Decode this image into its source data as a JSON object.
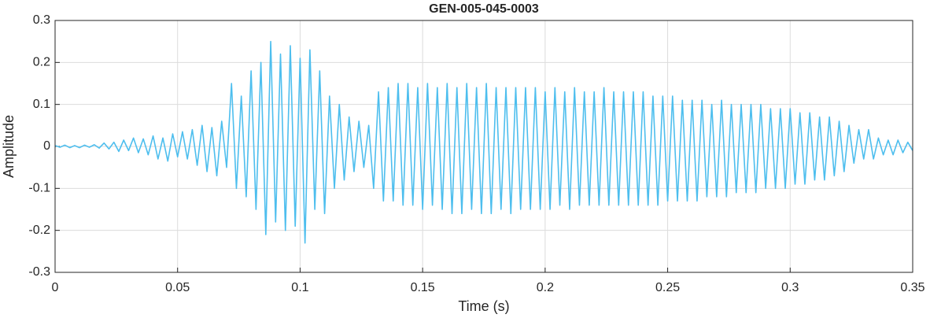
{
  "chart_data": {
    "type": "line",
    "title": "GEN-005-045-0003",
    "x_label": "Time (s)",
    "y_label": "Amplitude",
    "x": [
      0,
      0.002,
      0.004,
      0.006,
      0.008,
      0.01,
      0.012,
      0.014,
      0.016,
      0.018,
      0.02,
      0.022,
      0.024,
      0.026,
      0.028,
      0.03,
      0.032,
      0.034,
      0.036,
      0.038,
      0.04,
      0.042,
      0.044,
      0.046,
      0.048,
      0.05,
      0.052,
      0.054,
      0.056,
      0.058,
      0.06,
      0.062,
      0.064,
      0.066,
      0.068,
      0.07,
      0.072,
      0.074,
      0.076,
      0.078,
      0.08,
      0.082,
      0.084,
      0.086,
      0.088,
      0.09,
      0.092,
      0.094,
      0.096,
      0.098,
      0.1,
      0.102,
      0.104,
      0.106,
      0.108,
      0.11,
      0.112,
      0.114,
      0.116,
      0.118,
      0.12,
      0.122,
      0.124,
      0.126,
      0.128,
      0.13,
      0.132,
      0.134,
      0.136,
      0.138,
      0.14,
      0.142,
      0.144,
      0.146,
      0.148,
      0.15,
      0.152,
      0.154,
      0.156,
      0.158,
      0.16,
      0.162,
      0.164,
      0.166,
      0.168,
      0.17,
      0.172,
      0.174,
      0.176,
      0.178,
      0.18,
      0.182,
      0.184,
      0.186,
      0.188,
      0.19,
      0.192,
      0.194,
      0.196,
      0.198,
      0.2,
      0.202,
      0.204,
      0.206,
      0.208,
      0.21,
      0.212,
      0.214,
      0.216,
      0.218,
      0.22,
      0.222,
      0.224,
      0.226,
      0.228,
      0.23,
      0.232,
      0.234,
      0.236,
      0.238,
      0.24,
      0.242,
      0.244,
      0.246,
      0.248,
      0.25,
      0.252,
      0.254,
      0.256,
      0.258,
      0.26,
      0.262,
      0.264,
      0.266,
      0.268,
      0.27,
      0.272,
      0.274,
      0.276,
      0.278,
      0.28,
      0.282,
      0.284,
      0.286,
      0.288,
      0.29,
      0.292,
      0.294,
      0.296,
      0.298,
      0.3,
      0.302,
      0.304,
      0.306,
      0.308,
      0.31,
      0.312,
      0.314,
      0.316,
      0.318,
      0.32,
      0.322,
      0.324,
      0.326,
      0.328,
      0.33,
      0.332,
      0.334,
      0.336,
      0.338,
      0.34,
      0.342,
      0.344,
      0.346,
      0.348,
      0.35
    ],
    "series": [
      {
        "color": "#4dbeee",
        "values": [
          0.002,
          -0.002,
          0.003,
          -0.003,
          0.002,
          -0.003,
          0.003,
          -0.002,
          0.004,
          -0.004,
          0.008,
          -0.006,
          0.01,
          -0.012,
          0.015,
          -0.01,
          0.02,
          -0.015,
          0.018,
          -0.02,
          0.025,
          -0.03,
          0.02,
          -0.035,
          0.03,
          -0.025,
          0.035,
          -0.03,
          0.04,
          -0.045,
          0.05,
          -0.06,
          0.045,
          -0.07,
          0.06,
          -0.05,
          0.15,
          -0.1,
          0.12,
          -0.12,
          0.18,
          -0.15,
          0.2,
          -0.21,
          0.25,
          -0.18,
          0.22,
          -0.2,
          0.24,
          -0.19,
          0.21,
          -0.23,
          0.23,
          -0.15,
          0.18,
          -0.16,
          0.12,
          -0.1,
          0.1,
          -0.08,
          0.07,
          -0.06,
          0.06,
          -0.05,
          0.05,
          -0.1,
          0.13,
          -0.13,
          0.14,
          -0.13,
          0.15,
          -0.14,
          0.15,
          -0.14,
          0.14,
          -0.15,
          0.15,
          -0.14,
          0.14,
          -0.15,
          0.15,
          -0.16,
          0.14,
          -0.16,
          0.15,
          -0.15,
          0.14,
          -0.16,
          0.15,
          -0.16,
          0.14,
          -0.15,
          0.14,
          -0.16,
          0.14,
          -0.15,
          0.14,
          -0.15,
          0.14,
          -0.15,
          0.13,
          -0.15,
          0.14,
          -0.14,
          0.13,
          -0.15,
          0.14,
          -0.14,
          0.13,
          -0.14,
          0.13,
          -0.14,
          0.14,
          -0.14,
          0.13,
          -0.14,
          0.13,
          -0.14,
          0.13,
          -0.14,
          0.13,
          -0.14,
          0.12,
          -0.14,
          0.12,
          -0.13,
          0.12,
          -0.13,
          0.11,
          -0.13,
          0.11,
          -0.13,
          0.11,
          -0.12,
          0.1,
          -0.12,
          0.11,
          -0.12,
          0.1,
          -0.11,
          0.1,
          -0.11,
          0.1,
          -0.11,
          0.1,
          -0.1,
          0.09,
          -0.1,
          0.09,
          -0.1,
          0.09,
          -0.09,
          0.08,
          -0.09,
          0.08,
          -0.08,
          0.07,
          -0.08,
          0.07,
          -0.07,
          0.06,
          -0.06,
          0.05,
          -0.04,
          0.04,
          -0.03,
          0.04,
          -0.03,
          0.02,
          -0.02,
          0.015,
          -0.02,
          0.015,
          -0.015,
          0.01,
          -0.01
        ]
      }
    ],
    "xlim": [
      0,
      0.35
    ],
    "xticks": [
      0,
      0.05,
      0.1,
      0.15,
      0.2,
      0.25,
      0.3,
      0.35
    ],
    "ylim": [
      -0.3,
      0.3
    ],
    "yticks": [
      -0.3,
      -0.2,
      -0.1,
      0,
      0.1,
      0.2,
      0.3
    ],
    "grid": true
  }
}
